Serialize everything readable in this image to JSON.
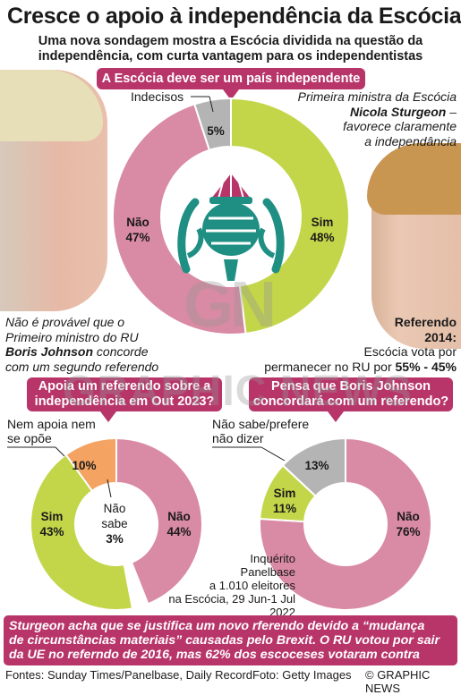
{
  "header": {
    "title": "Cresce o apoio à independência da Escócia",
    "subtitle_line1": "Uma nova sondagem mostra a Escócia dividida na questão da",
    "subtitle_line2": "independência, com curta vantagem para os independentistas"
  },
  "banner_main": "A Escócia deve ser um país independente",
  "left_note": {
    "line1": "Não é provável que o",
    "line2": "Primeiro ministro do RU",
    "name": "Boris Johnson",
    "line3_rest": " concorde",
    "line4": "com um segundo referendo"
  },
  "right_note": {
    "line1": "Primeira ministra da Escócia",
    "name": "Nicola Sturgeon",
    "line2_rest": " –",
    "line3": "favorece claramente",
    "line4": "a independância"
  },
  "referendum": {
    "head1": "Referendo",
    "head2": "2014:",
    "line1": "Escócia vota por",
    "line2_pre": "permanecer no RU por ",
    "line2_bold": "55% - 45%"
  },
  "banner_q1_line1": "Apoia um referendo sobre a",
  "banner_q1_line2": "independência em Out 2023?",
  "banner_q2_line1": "Pensa que Boris Johnson",
  "banner_q2_line2": "concordará com um referendo?",
  "survey": {
    "l1": "Inquérito",
    "l2": "Panelbase",
    "l3": "a 1.010 eleitores",
    "l4": "na Escócia, 29 Jun-1 Jul 2022"
  },
  "note": {
    "line1": "Sturgeon acha que se justifica um novo rferendo devido a “mudança",
    "line2": "de circunstâncias materiais” causadas pelo Brexit. O RU votou por sair",
    "line3": "da UE no referndo de 2016, mas 62% dos escoceses votaram contra"
  },
  "footer": {
    "sources": "Fontes: Sunday Times/Panelbase, Daily Record",
    "photo": "Foto: Getty Images",
    "credit": "© GRAPHIC NEWS"
  },
  "watermark": {
    "logo": "GN",
    "text": "GRAPHIC NEWS"
  },
  "colors": {
    "magenta": "#b8356a",
    "pink": "#d98aa4",
    "green": "#c3d64a",
    "grey": "#b4b4b4",
    "orange": "#f4a362",
    "thistle_green": "#1f8f84",
    "thistle_purple": "#b8356a"
  },
  "chart_data": [
    {
      "type": "pie",
      "title": "A Escócia deve ser um país independente",
      "slices": [
        {
          "label": "Sim",
          "value": 48,
          "display": "48%",
          "color": "#c3d64a"
        },
        {
          "label": "Não",
          "value": 47,
          "display": "47%",
          "color": "#d98aa4"
        },
        {
          "label": "Indecisos",
          "value": 5,
          "display": "5%",
          "color": "#b4b4b4"
        }
      ]
    },
    {
      "type": "pie",
      "title": "Apoia um referendo sobre a independência em Out 2023?",
      "slices": [
        {
          "label": "Não",
          "value": 44,
          "display": "44%",
          "color": "#d98aa4"
        },
        {
          "label": "Não sabe",
          "value": 3,
          "display": "3%",
          "color": "#ffffff"
        },
        {
          "label": "Sim",
          "value": 43,
          "display": "43%",
          "color": "#c3d64a"
        },
        {
          "label": "Nem apoia nem se opõe",
          "value": 10,
          "display": "10%",
          "color": "#f4a362"
        }
      ]
    },
    {
      "type": "pie",
      "title": "Pensa que Boris Johnson concordará com um referendo?",
      "slices": [
        {
          "label": "Não",
          "value": 76,
          "display": "76%",
          "color": "#d98aa4"
        },
        {
          "label": "Sim",
          "value": 11,
          "display": "11%",
          "color": "#c3d64a"
        },
        {
          "label": "Não sabe/prefere não dizer",
          "value": 13,
          "display": "13%",
          "color": "#b4b4b4"
        }
      ]
    }
  ]
}
